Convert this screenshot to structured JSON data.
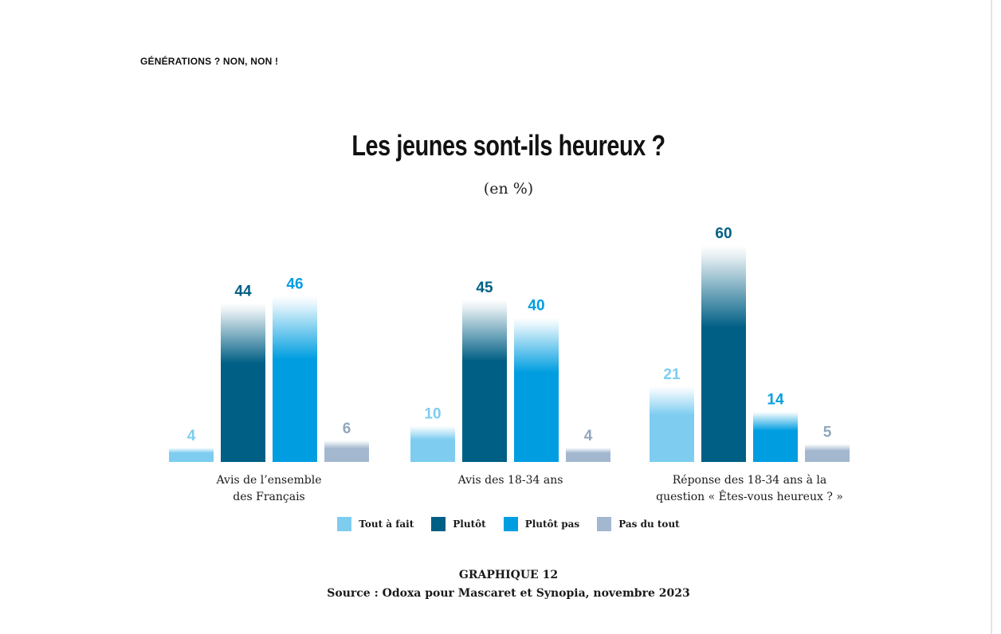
{
  "page": {
    "running_head": "GÉNÉRATIONS ? NON, NON !",
    "graphique": "GRAPHIQUE 12",
    "source": "Source : Odoxa pour Mascaret et Synopia, novembre 2023"
  },
  "chart_data": {
    "type": "bar",
    "title": "Les jeunes sont-ils heureux ?",
    "subtitle": "(en %)",
    "categories": [
      [
        "Avis de l’ensemble",
        "des Français"
      ],
      [
        "Avis des 18-34 ans"
      ],
      [
        "Réponse des 18-34 ans à la",
        "question « Êtes-vous heureux ? »"
      ]
    ],
    "series": [
      {
        "name": "Tout à fait",
        "values": [
          4,
          10,
          21
        ],
        "color": "#7ecdf0",
        "label_color": "#7ecdf0"
      },
      {
        "name": "Plutôt",
        "values": [
          44,
          45,
          60
        ],
        "color": "#005f85",
        "label_color": "#005f85"
      },
      {
        "name": "Plutôt pas",
        "values": [
          46,
          40,
          14
        ],
        "color": "#009ee0",
        "label_color": "#009ee0"
      },
      {
        "name": "Pas du tout",
        "values": [
          6,
          4,
          5
        ],
        "color": "#a3b8cf",
        "label_color": "#92a7bd"
      }
    ],
    "ylim": [
      0,
      60
    ],
    "grid": false,
    "legend_position": "bottom"
  }
}
